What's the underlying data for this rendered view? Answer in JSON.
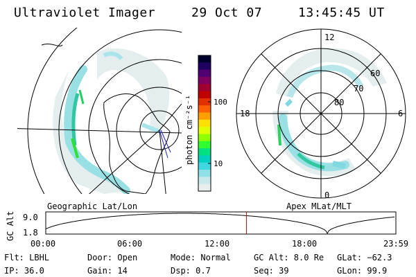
{
  "header": {
    "instrument": "Ultraviolet Imager",
    "date": "29 Oct 07",
    "time": "13:45:45 UT"
  },
  "left_map": {
    "label": "Geographic Lat/Lon"
  },
  "right_map": {
    "label": "Apex MLat/MLT",
    "mlt_labels": [
      "12",
      "18",
      "6",
      "0"
    ],
    "mlat_labels": [
      "60",
      "70",
      "80"
    ]
  },
  "colorbar": {
    "unit_label": "photon cm⁻²s⁻¹",
    "ticks": [
      "100",
      "10"
    ],
    "colors": [
      "#000030",
      "#200060",
      "#500070",
      "#800060",
      "#a00030",
      "#c00000",
      "#e03000",
      "#ff6000",
      "#ffa000",
      "#ffe000",
      "#e0ff00",
      "#90ff00",
      "#30ff30",
      "#00e080",
      "#00d0c0",
      "#40d8e0",
      "#90e0e8",
      "#c8e8ec",
      "#e8eeee"
    ]
  },
  "altitude_plot": {
    "ylabel": "GC Alt",
    "y_ticks": [
      "9.0",
      "1.8"
    ],
    "x_ticks": [
      "00:00",
      "06:00",
      "12:00",
      "18:00",
      "23:59"
    ],
    "current_time_hours": 13.76
  },
  "info": {
    "flt": "Flt: LBHL",
    "ip": "IP: 36.0",
    "door": "Door: Open",
    "gain": "Gain: 14",
    "mode": "Mode: Normal",
    "dsp": "Dsp:    0.7",
    "gcalt": "GC Alt: 8.0 Re",
    "seq": "Seq: 39",
    "glat": "GLat: −62.3",
    "glon": "GLon:  99.9"
  }
}
